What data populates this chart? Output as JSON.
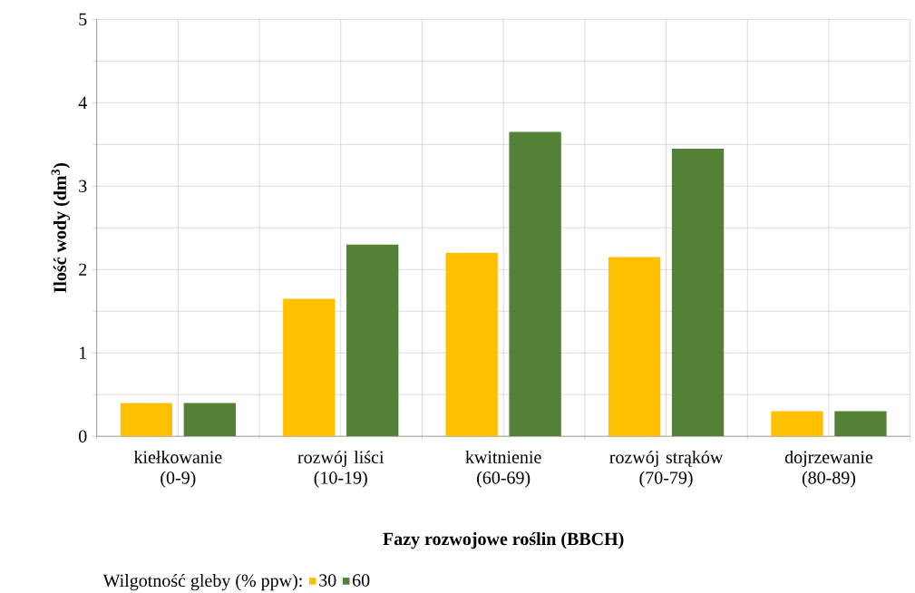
{
  "chart_data": {
    "type": "bar",
    "categories": [
      "kiełkowanie (0-9)",
      "rozwój liści (10-19)",
      "kwitnienie (60-69)",
      "rozwój strąków (70-79)",
      "dojrzewanie (80-89)"
    ],
    "series": [
      {
        "name": "30",
        "color": "#ffc000",
        "values": [
          0.4,
          1.65,
          2.2,
          2.15,
          0.3
        ]
      },
      {
        "name": "60",
        "color": "#538135",
        "values": [
          0.4,
          2.3,
          3.65,
          3.45,
          0.3
        ]
      }
    ],
    "ylim": [
      0,
      5
    ],
    "yticks": [
      0,
      1,
      2,
      3,
      4,
      5
    ],
    "grid": true,
    "legend": "bottom",
    "legend_title": "Wilgotność gleby (% ppw):",
    "xlabel": "Fazy rozwojowe roślin (BBCH)",
    "ylabel": "Ilość wody (dm$^{3}$)"
  }
}
